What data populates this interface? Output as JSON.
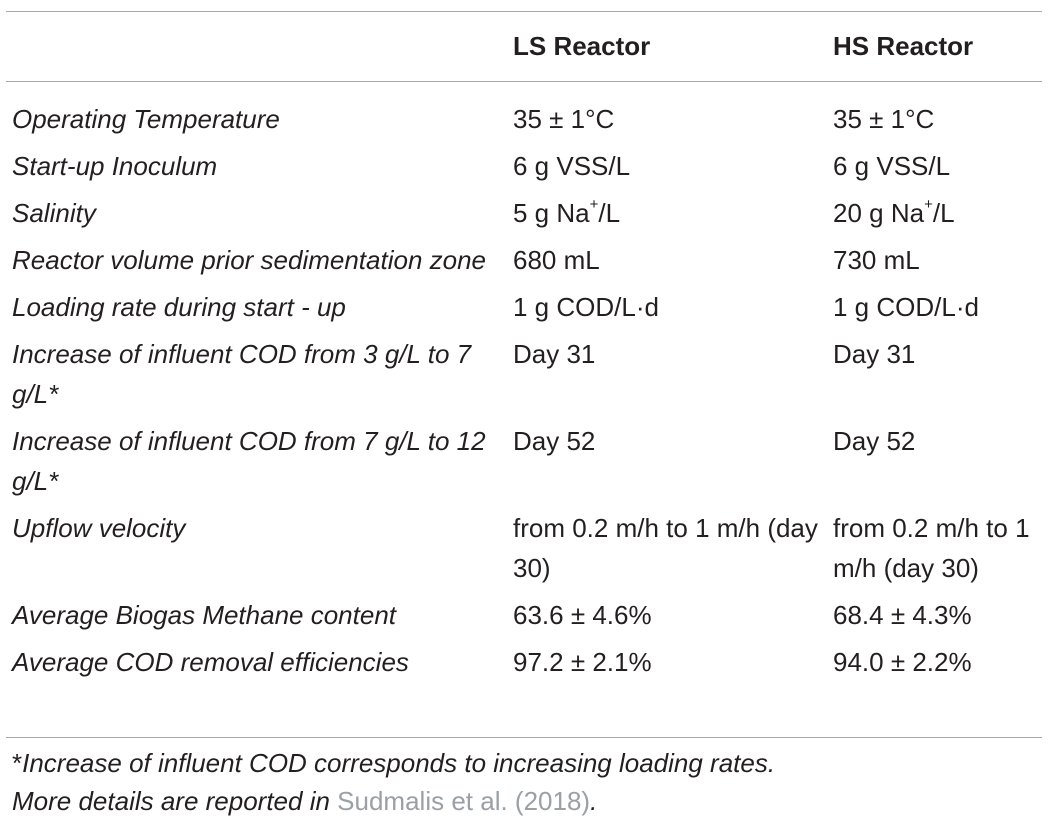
{
  "header": {
    "col1": "LS Reactor",
    "col2": "HS Reactor"
  },
  "rows": [
    {
      "label": "Operating Temperature",
      "ls": "35 ± 1°C",
      "hs": "35 ± 1°C"
    },
    {
      "label": "Start-up Inoculum",
      "ls": "6 g VSS/L",
      "hs": "6 g VSS/L"
    },
    {
      "label": "Salinity",
      "ls_pre": "5 g Na",
      "ls_sup": "+",
      "ls_post": "/L",
      "hs_pre": "20 g Na",
      "hs_sup": "+",
      "hs_post": "/L"
    },
    {
      "label": "Reactor volume prior sedimentation zone",
      "ls": "680 mL",
      "hs": "730 mL"
    },
    {
      "label": "Loading rate during start - up",
      "ls": "1 g COD/L·d",
      "hs": "1 g COD/L·d"
    },
    {
      "label": "Increase of influent COD from 3 g/L to 7 g/L*",
      "ls": "Day 31",
      "hs": "Day 31"
    },
    {
      "label": "Increase of influent COD from 7 g/L to 12 g/L*",
      "ls": "Day 52",
      "hs": "Day 52"
    },
    {
      "label": "Upflow velocity",
      "ls": "from 0.2 m/h to 1 m/h (day 30)",
      "hs": "from 0.2 m/h to 1 m/h (day 30)"
    },
    {
      "label": "Average Biogas Methane content",
      "ls": "63.6 ± 4.6%",
      "hs": "68.4 ± 4.3%"
    },
    {
      "label": "Average COD removal efficiencies",
      "ls": "97.2 ± 2.1%",
      "hs": "94.0 ± 2.2%"
    }
  ],
  "footnote": {
    "asterisk": "*",
    "line1": "Increase of influent COD corresponds to increasing loading rates.",
    "line2_pre": "More details are reported in ",
    "link": "Sudmalis et al. (2018)",
    "line2_post": "."
  }
}
